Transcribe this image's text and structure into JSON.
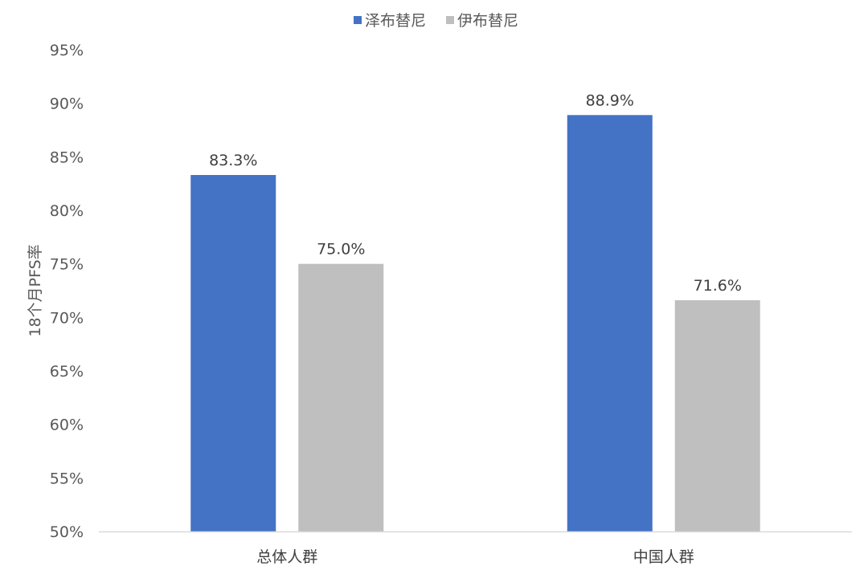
{
  "chart_data": {
    "type": "bar",
    "title": "",
    "xlabel": "",
    "ylabel": "18个月PFS率",
    "categories": [
      "总体人群",
      "中国人群"
    ],
    "series": [
      {
        "name": "泽布替尼",
        "color": "#4472C4",
        "values": [
          83.3,
          88.9
        ]
      },
      {
        "name": "伊布替尼",
        "color": "#BFBFBF",
        "values": [
          75.0,
          71.6
        ]
      }
    ],
    "data_labels": [
      [
        "83.3%",
        "88.9%"
      ],
      [
        "75.0%",
        "71.6%"
      ]
    ],
    "ylim": [
      50,
      95
    ],
    "yticks": [
      50,
      55,
      60,
      65,
      70,
      75,
      80,
      85,
      90,
      95
    ],
    "ytick_labels": [
      "50%",
      "55%",
      "60%",
      "65%",
      "70%",
      "75%",
      "80%",
      "85%",
      "90%",
      "95%"
    ],
    "legend_position": "top-center",
    "grid": false,
    "axis_color": "#D9D9D9"
  }
}
